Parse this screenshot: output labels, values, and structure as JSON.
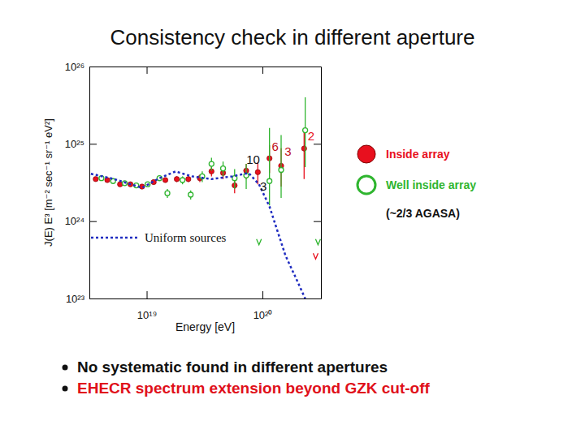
{
  "chart_data": {
    "type": "scatter",
    "title": "Consistency check in different aperture",
    "x_label": "Energy [eV]",
    "y_label": "J(E) E³ [m⁻² sec⁻¹ sr⁻¹ eV²]",
    "log": true,
    "legend": "right",
    "note": "(~2/3 AGASA)",
    "xlim": [
      3.2e+18,
      3.2e+20
    ],
    "ylim": [
      1e+23,
      1e+26
    ],
    "xticks": [
      {
        "value": 1e+19,
        "label": "10¹⁹"
      },
      {
        "value": 1e+20,
        "label": "10²⁰"
      }
    ],
    "yticks": [
      {
        "value": 1e+23,
        "label": "10²³"
      },
      {
        "value": 1e+24,
        "label": "10²⁴"
      },
      {
        "value": 1e+25,
        "label": "10²⁵"
      },
      {
        "value": 1e+26,
        "label": "10²⁶"
      }
    ],
    "series": [
      {
        "name": "Inside array",
        "type": "scatter",
        "color": "#e8101e",
        "marker": "circle",
        "x": [
          3.63e+18,
          4.57e+18,
          5.89e+18,
          7.24e+18,
          9.12e+18,
          1.15e+19,
          1.45e+19,
          1.82e+19,
          2.29e+19,
          2.88e+19,
          3.63e+19,
          4.57e+19,
          5.75e+19,
          7.24e+19,
          9.12e+19,
          1.15e+20,
          1.45e+20,
          2.29e+20
        ],
        "values": [
          3.5e+24,
          3.4e+24,
          3e+24,
          3e+24,
          2.8e+24,
          3.2e+24,
          3.4e+24,
          3.5e+24,
          3.5e+24,
          3.6e+24,
          4.4e+24,
          4.2e+24,
          2.9e+24,
          4.5e+24,
          4.3e+24,
          6.5e+24,
          5.2e+24,
          8.7e+24
        ],
        "low": [
          3.4e+24,
          3.3e+24,
          2.9e+24,
          2.9e+24,
          2.7e+24,
          3e+24,
          3.2e+24,
          3.2e+24,
          3.2e+24,
          3.2e+24,
          3.8e+24,
          3.5e+24,
          2.3e+24,
          3.5e+24,
          3e+24,
          4.2e+24,
          2.8e+24,
          3.5e+24
        ],
        "high": [
          3.6e+24,
          3.5e+24,
          3.1e+24,
          3.1e+24,
          2.9e+24,
          3.4e+24,
          3.6e+24,
          3.8e+24,
          3.8e+24,
          4e+24,
          5e+24,
          4.9e+24,
          3.5e+24,
          5.5e+24,
          5.8e+24,
          9.6e+24,
          8.8e+24,
          1.6e+25
        ]
      },
      {
        "name": "Well inside array",
        "type": "scatter",
        "color": "#2fb52f",
        "marker": "circle-open",
        "x": [
          4.07e+18,
          5.13e+18,
          6.46e+18,
          8.13e+18,
          1.02e+19,
          1.29e+19,
          1.51e+19,
          2.04e+19,
          2.4e+19,
          3.02e+19,
          3.63e+19,
          4.57e+19,
          5.75e+19,
          7.24e+19,
          1.15e+20,
          1.45e+20,
          2.34e+20
        ],
        "values": [
          3.6e+24,
          3.3e+24,
          3.1e+24,
          2.9e+24,
          3e+24,
          3.6e+24,
          2.3e+24,
          3.4e+24,
          2.2e+24,
          3.8e+24,
          5.5e+24,
          4.8e+24,
          3.6e+24,
          3.9e+24,
          3.3e+24,
          4.6e+24,
          1.5e+25
        ],
        "low": [
          3.4e+24,
          3.1e+24,
          2.9e+24,
          2.7e+24,
          2.8e+24,
          3.3e+24,
          2e+24,
          3e+24,
          1.9e+24,
          3.2e+24,
          4.5e+24,
          3.8e+24,
          2.6e+24,
          2.6e+24,
          1.6e+24,
          2e+24,
          5e+24
        ],
        "high": [
          3.8e+24,
          3.5e+24,
          3.3e+24,
          3.1e+24,
          3.2e+24,
          3.9e+24,
          2.6e+24,
          3.8e+24,
          2.5e+24,
          4.4e+24,
          6.6e+24,
          5.9e+24,
          4.7e+24,
          5.5e+24,
          1.6e+25,
          1.3e+25,
          4e+25
        ]
      },
      {
        "name": "Uniform sources",
        "type": "line",
        "color": "#1f2cc0",
        "line_style": "dashed",
        "x": [
          3.3e+18,
          5.25e+18,
          9.12e+18,
          1.29e+19,
          1.78e+19,
          2.45e+19,
          3.63e+19,
          5.5e+19,
          7.59e+19,
          9.33e+19,
          1.15e+20,
          1.35e+20,
          1.58e+20,
          1.91e+20,
          2.34e+20
        ],
        "values": [
          4.1e+24,
          3.5e+24,
          2.7e+24,
          3.6e+24,
          4.4e+24,
          3.8e+24,
          3.5e+24,
          3.8e+24,
          4.2e+24,
          3e+24,
          1.55e+24,
          7.4e+23,
          3.6e+23,
          1.95e+23,
          1e+23
        ]
      },
      {
        "type": "scatter",
        "color": "#e8101e",
        "marker": "arrow-down",
        "x": [
          2.88e+20
        ],
        "values": [
          3.4e+23
        ]
      },
      {
        "type": "scatter",
        "color": "#2fb52f",
        "marker": "arrow-down",
        "x": [
          9.33e+19,
          3.02e+20
        ],
        "values": [
          5.2e+23,
          5.2e+23
        ]
      }
    ],
    "annotations": [
      {
        "text": "10",
        "x": 8.3e+19,
        "y": 5.5e+24,
        "color": "#111111"
      },
      {
        "text": "6",
        "x": 1.29e+20,
        "y": 8.1e+24,
        "color": "#c0101a"
      },
      {
        "text": "3",
        "x": 1.66e+20,
        "y": 7.1e+24,
        "color": "#c0101a"
      },
      {
        "text": "3",
        "x": 1.02e+20,
        "y": 2.5e+24,
        "color": "#111111"
      },
      {
        "text": "2",
        "x": 2.63e+20,
        "y": 1.12e+25,
        "color": "#e8101e"
      }
    ]
  },
  "bullets": [
    {
      "text": "No systematic found in different apertures",
      "color": "#111111"
    },
    {
      "text": "EHECR spectrum extension beyond GZK cut-off",
      "color": "#e0101a"
    }
  ]
}
